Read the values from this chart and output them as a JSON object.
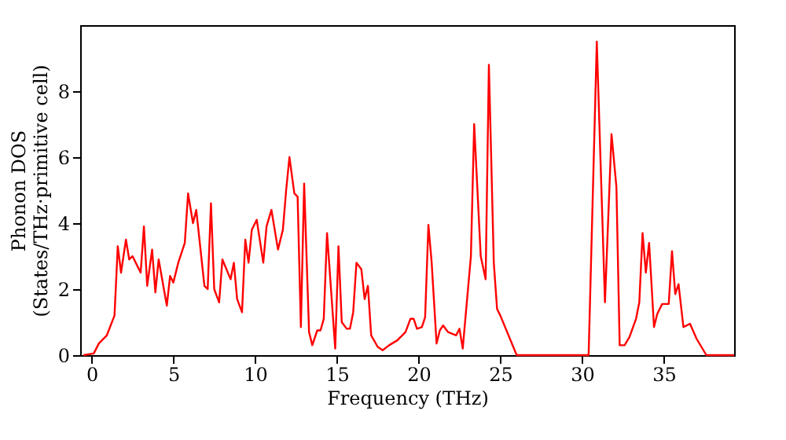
{
  "chart_data": {
    "type": "line",
    "xlabel": "Frequency (THz)",
    "ylabel": "Phonon DOS\n(States/THz·primitive cell)",
    "xlim": [
      -0.7,
      39.3
    ],
    "ylim": [
      0,
      10
    ],
    "xticks": [
      0,
      5,
      10,
      15,
      20,
      25,
      30,
      35
    ],
    "yticks": [
      0,
      2,
      4,
      6,
      8
    ],
    "grid": false,
    "marker": "none",
    "line_style": "solid",
    "series": [
      {
        "color": "#ff0000",
        "x": [
          -0.5,
          0.13,
          0.45,
          0.93,
          1.4,
          1.6,
          1.8,
          2.1,
          2.3,
          2.5,
          2.8,
          3.0,
          3.2,
          3.4,
          3.7,
          3.9,
          4.1,
          4.6,
          4.8,
          5.0,
          5.3,
          5.7,
          5.9,
          6.2,
          6.4,
          6.9,
          7.1,
          7.3,
          7.5,
          7.8,
          8.0,
          8.5,
          8.7,
          8.9,
          9.2,
          9.4,
          9.6,
          9.8,
          10.1,
          10.5,
          10.7,
          11.0,
          11.4,
          11.7,
          11.9,
          12.1,
          12.4,
          12.6,
          12.8,
          13.0,
          13.3,
          13.5,
          13.8,
          14.0,
          14.2,
          14.4,
          14.9,
          15.1,
          15.3,
          15.6,
          15.8,
          16.0,
          16.2,
          16.5,
          16.7,
          16.9,
          17.1,
          17.5,
          17.8,
          18.2,
          18.7,
          19.2,
          19.5,
          19.7,
          19.9,
          20.2,
          20.4,
          20.6,
          20.8,
          21.1,
          21.3,
          21.5,
          21.8,
          22.3,
          22.5,
          22.7,
          23.2,
          23.4,
          23.8,
          24.1,
          24.3,
          24.6,
          24.8,
          25.0,
          26.0,
          30.4,
          30.9,
          31.4,
          31.8,
          32.1,
          32.3,
          32.6,
          32.9,
          33.3,
          33.5,
          33.7,
          33.9,
          34.1,
          34.4,
          34.6,
          34.9,
          35.3,
          35.5,
          35.7,
          35.9,
          36.2,
          36.6,
          37.0,
          37.6,
          39.3
        ],
        "values": [
          0.0,
          0.05,
          0.36,
          0.6,
          1.2,
          3.3,
          2.5,
          3.5,
          2.9,
          3.0,
          2.7,
          2.5,
          3.9,
          2.1,
          3.2,
          1.9,
          2.9,
          1.5,
          2.4,
          2.2,
          2.8,
          3.4,
          4.9,
          4.0,
          4.4,
          2.1,
          2.0,
          4.6,
          2.0,
          1.6,
          2.9,
          2.3,
          2.8,
          1.7,
          1.3,
          3.5,
          2.8,
          3.8,
          4.1,
          2.8,
          3.9,
          4.4,
          3.2,
          3.8,
          5.0,
          6.0,
          4.9,
          4.8,
          0.85,
          5.2,
          0.7,
          0.3,
          0.75,
          0.75,
          1.1,
          3.7,
          0.2,
          3.3,
          1.0,
          0.8,
          0.8,
          1.3,
          2.8,
          2.6,
          1.7,
          2.1,
          0.6,
          0.25,
          0.15,
          0.3,
          0.45,
          0.7,
          1.1,
          1.1,
          0.8,
          0.85,
          1.15,
          3.95,
          2.8,
          0.35,
          0.75,
          0.9,
          0.7,
          0.6,
          0.8,
          0.2,
          3.0,
          7.0,
          3.0,
          2.3,
          8.8,
          2.8,
          1.4,
          1.2,
          0.0,
          0.0,
          9.5,
          1.6,
          6.7,
          5.1,
          0.3,
          0.3,
          0.55,
          1.1,
          1.6,
          3.7,
          2.5,
          3.4,
          0.85,
          1.25,
          1.55,
          1.55,
          3.15,
          1.85,
          2.15,
          0.85,
          0.95,
          0.5,
          0.0,
          0.0
        ]
      }
    ]
  }
}
